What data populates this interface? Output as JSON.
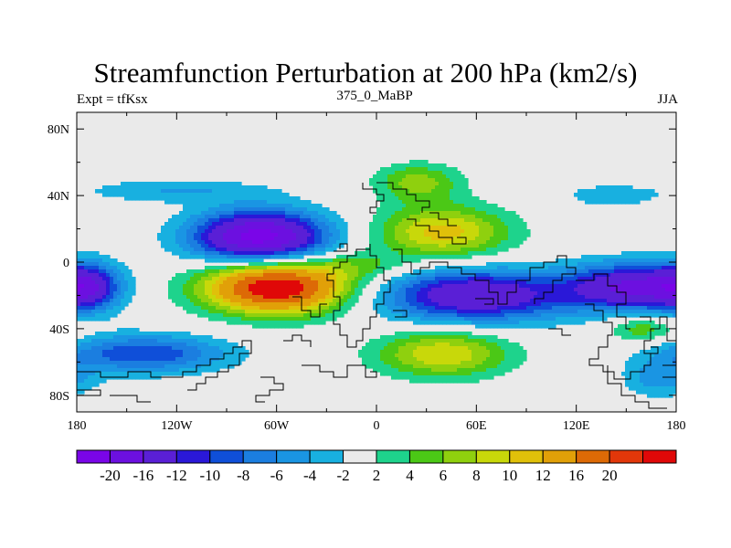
{
  "title": "Streamfunction Perturbation at 200 hPa (km2/s)",
  "subtitle_left": "Expt = tfKsx",
  "subtitle_center": "375_0_MaBP",
  "subtitle_right": "JJA",
  "x_ticks": [
    {
      "value": -180,
      "label": "180"
    },
    {
      "value": -120,
      "label": "120W"
    },
    {
      "value": -60,
      "label": "60W"
    },
    {
      "value": 0,
      "label": "0"
    },
    {
      "value": 60,
      "label": "60E"
    },
    {
      "value": 120,
      "label": "120E"
    },
    {
      "value": 180,
      "label": "180"
    }
  ],
  "y_ticks": [
    {
      "value": 80,
      "label": "80N"
    },
    {
      "value": 40,
      "label": "40N"
    },
    {
      "value": 0,
      "label": "0"
    },
    {
      "value": -40,
      "label": "40S"
    },
    {
      "value": -80,
      "label": "80S"
    }
  ],
  "lon_range": [
    -180,
    180
  ],
  "lat_range": [
    -90,
    90
  ],
  "colorbar": {
    "colors": [
      "#7a05e8",
      "#6c10e0",
      "#5a1fd6",
      "#2a18d8",
      "#0f4fd9",
      "#1b7ee0",
      "#1a95e3",
      "#18b0e0",
      "#eaeaea",
      "#1ed38c",
      "#4bc816",
      "#8fd00e",
      "#c8d80a",
      "#e0c00a",
      "#e1a008",
      "#dd6a06",
      "#e2370a",
      "#e00808"
    ],
    "labels": [
      "-20",
      "-16",
      "-12",
      "-10",
      "-8",
      "-6",
      "-4",
      "-2",
      "2",
      "4",
      "6",
      "8",
      "10",
      "12",
      "16",
      "20"
    ]
  },
  "field_features": [
    {
      "lon": -70,
      "lat": 15,
      "amp": -22,
      "sx": 28,
      "sy": 11
    },
    {
      "lon": -60,
      "lat": -15,
      "amp": 24,
      "sx": 30,
      "sy": 11
    },
    {
      "lon": 60,
      "lat": -20,
      "amp": -16,
      "sx": 40,
      "sy": 11
    },
    {
      "lon": 150,
      "lat": -15,
      "amp": -15,
      "sx": 25,
      "sy": 10
    },
    {
      "lon": -175,
      "lat": -15,
      "amp": -14,
      "sx": 15,
      "sy": 10
    },
    {
      "lon": 40,
      "lat": 18,
      "amp": 11,
      "sx": 28,
      "sy": 11
    },
    {
      "lon": 25,
      "lat": 48,
      "amp": 7,
      "sx": 18,
      "sy": 8
    },
    {
      "lon": 40,
      "lat": -55,
      "amp": 10,
      "sx": 28,
      "sy": 10
    },
    {
      "lon": -140,
      "lat": -55,
      "amp": -10,
      "sx": 35,
      "sy": 8
    },
    {
      "lon": 160,
      "lat": -40,
      "amp": 6,
      "sx": 15,
      "sy": 6
    },
    {
      "lon": -120,
      "lat": 43,
      "amp": -4,
      "sx": 40,
      "sy": 5
    },
    {
      "lon": 140,
      "lat": 40,
      "amp": -3.5,
      "sx": 20,
      "sy": 5
    },
    {
      "lon": -10,
      "lat": -2,
      "amp": 4,
      "sx": 20,
      "sy": 6
    },
    {
      "lon": 170,
      "lat": -70,
      "amp": -5,
      "sx": 15,
      "sy": 8
    }
  ]
}
